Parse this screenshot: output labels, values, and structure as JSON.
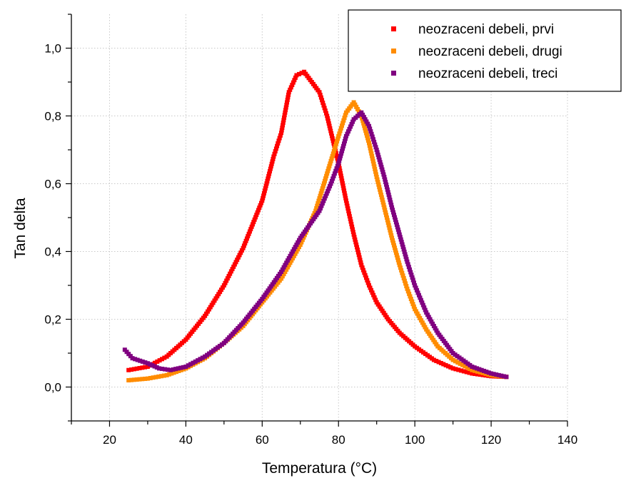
{
  "chart_data": {
    "type": "scatter",
    "title": "",
    "xlabel": "Temperatura (°C)",
    "ylabel": "Tan delta",
    "xlim": [
      10,
      140
    ],
    "ylim": [
      -0.1,
      1.1
    ],
    "x_ticks": [
      20,
      40,
      60,
      80,
      100,
      120,
      140
    ],
    "y_ticks": [
      0.0,
      0.2,
      0.4,
      0.6,
      0.8,
      1.0
    ],
    "x_tick_labels": [
      "20",
      "40",
      "60",
      "80",
      "100",
      "120",
      "140"
    ],
    "y_tick_labels": [
      "0,0",
      "0,2",
      "0,4",
      "0,6",
      "0,8",
      "1,0"
    ],
    "grid": true,
    "legend_position": "top-right",
    "series": [
      {
        "name": "neozraceni debeli, prvi",
        "color": "#ff0000",
        "points": [
          [
            25,
            0.05
          ],
          [
            30,
            0.06
          ],
          [
            35,
            0.09
          ],
          [
            40,
            0.14
          ],
          [
            45,
            0.21
          ],
          [
            50,
            0.3
          ],
          [
            55,
            0.41
          ],
          [
            60,
            0.55
          ],
          [
            63,
            0.68
          ],
          [
            65,
            0.75
          ],
          [
            67,
            0.87
          ],
          [
            69,
            0.92
          ],
          [
            71,
            0.93
          ],
          [
            73,
            0.9
          ],
          [
            75,
            0.87
          ],
          [
            77,
            0.8
          ],
          [
            80,
            0.66
          ],
          [
            82,
            0.55
          ],
          [
            84,
            0.45
          ],
          [
            86,
            0.36
          ],
          [
            88,
            0.3
          ],
          [
            90,
            0.25
          ],
          [
            93,
            0.2
          ],
          [
            96,
            0.16
          ],
          [
            100,
            0.12
          ],
          [
            105,
            0.08
          ],
          [
            110,
            0.055
          ],
          [
            115,
            0.04
          ],
          [
            120,
            0.032
          ],
          [
            124,
            0.03
          ]
        ]
      },
      {
        "name": "neozraceni debeli, drugi",
        "color": "#ff8c00",
        "points": [
          [
            25,
            0.02
          ],
          [
            30,
            0.025
          ],
          [
            35,
            0.035
          ],
          [
            40,
            0.055
          ],
          [
            45,
            0.085
          ],
          [
            50,
            0.13
          ],
          [
            55,
            0.18
          ],
          [
            60,
            0.25
          ],
          [
            65,
            0.32
          ],
          [
            70,
            0.42
          ],
          [
            74,
            0.52
          ],
          [
            77,
            0.63
          ],
          [
            80,
            0.74
          ],
          [
            82,
            0.81
          ],
          [
            84,
            0.84
          ],
          [
            86,
            0.8
          ],
          [
            88,
            0.72
          ],
          [
            90,
            0.62
          ],
          [
            92,
            0.53
          ],
          [
            94,
            0.44
          ],
          [
            96,
            0.36
          ],
          [
            98,
            0.29
          ],
          [
            100,
            0.23
          ],
          [
            103,
            0.17
          ],
          [
            106,
            0.12
          ],
          [
            110,
            0.08
          ],
          [
            115,
            0.05
          ],
          [
            120,
            0.035
          ],
          [
            124,
            0.03
          ]
        ]
      },
      {
        "name": "neozraceni debeli, treci",
        "color": "#800080",
        "points": [
          [
            24,
            0.11
          ],
          [
            26,
            0.085
          ],
          [
            30,
            0.07
          ],
          [
            33,
            0.055
          ],
          [
            36,
            0.05
          ],
          [
            40,
            0.06
          ],
          [
            45,
            0.09
          ],
          [
            50,
            0.13
          ],
          [
            55,
            0.19
          ],
          [
            60,
            0.26
          ],
          [
            65,
            0.34
          ],
          [
            70,
            0.44
          ],
          [
            75,
            0.52
          ],
          [
            78,
            0.6
          ],
          [
            80,
            0.66
          ],
          [
            82,
            0.74
          ],
          [
            84,
            0.79
          ],
          [
            86,
            0.81
          ],
          [
            88,
            0.77
          ],
          [
            90,
            0.7
          ],
          [
            92,
            0.62
          ],
          [
            94,
            0.53
          ],
          [
            96,
            0.45
          ],
          [
            98,
            0.37
          ],
          [
            100,
            0.3
          ],
          [
            103,
            0.22
          ],
          [
            106,
            0.16
          ],
          [
            110,
            0.1
          ],
          [
            115,
            0.06
          ],
          [
            120,
            0.04
          ],
          [
            124,
            0.03
          ]
        ]
      }
    ]
  }
}
